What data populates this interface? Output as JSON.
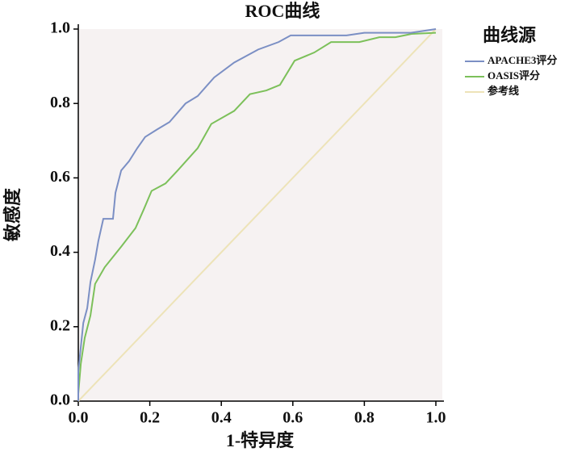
{
  "chart_data": {
    "type": "line",
    "title": "ROC曲线",
    "x_label": "1-特异度",
    "y_label": "敏感度",
    "legend_title": "曲线源",
    "legend_position": "right",
    "xlim": [
      0,
      1
    ],
    "ylim": [
      0,
      1
    ],
    "xticks": [
      {
        "value": 0,
        "label": "0.0"
      },
      {
        "value": 0.2,
        "label": "0.2"
      },
      {
        "value": 0.4,
        "label": "0.4"
      },
      {
        "value": 0.6,
        "label": "0.6"
      },
      {
        "value": 0.8,
        "label": "0.8"
      },
      {
        "value": 1,
        "label": "1.0"
      }
    ],
    "yticks": [
      {
        "value": 0,
        "label": "0.0"
      },
      {
        "value": 0.2,
        "label": "0.2"
      },
      {
        "value": 0.4,
        "label": "0.4"
      },
      {
        "value": 0.6,
        "label": "0.6"
      },
      {
        "value": 0.8,
        "label": "0.8"
      },
      {
        "value": 1,
        "label": "1.0"
      }
    ],
    "grid": false,
    "series": [
      {
        "name": "APACHE3评分",
        "color": "#7b8fc4",
        "x": [
          0,
          0,
          0.007,
          0.014,
          0.025,
          0.034,
          0.047,
          0.056,
          0.07,
          0.097,
          0.104,
          0.12,
          0.142,
          0.165,
          0.187,
          0.22,
          0.255,
          0.3,
          0.334,
          0.38,
          0.436,
          0.503,
          0.56,
          0.594,
          0.75,
          0.8,
          0.93,
          1
        ],
        "values": [
          0,
          0.08,
          0.145,
          0.21,
          0.25,
          0.32,
          0.38,
          0.43,
          0.49,
          0.49,
          0.56,
          0.62,
          0.645,
          0.68,
          0.71,
          0.73,
          0.75,
          0.8,
          0.82,
          0.87,
          0.91,
          0.945,
          0.965,
          0.983,
          0.983,
          0.99,
          0.99,
          1
        ]
      },
      {
        "name": "OASIS评分",
        "color": "#7cc05a",
        "x": [
          0,
          0.007,
          0.018,
          0.034,
          0.047,
          0.074,
          0.12,
          0.16,
          0.183,
          0.205,
          0.244,
          0.278,
          0.334,
          0.372,
          0.436,
          0.48,
          0.526,
          0.564,
          0.605,
          0.66,
          0.707,
          0.786,
          0.842,
          0.887,
          0.932,
          1
        ],
        "values": [
          0.02,
          0.1,
          0.17,
          0.23,
          0.315,
          0.36,
          0.415,
          0.465,
          0.515,
          0.565,
          0.585,
          0.62,
          0.68,
          0.745,
          0.78,
          0.825,
          0.835,
          0.85,
          0.915,
          0.937,
          0.965,
          0.965,
          0.978,
          0.978,
          0.987,
          0.99
        ]
      },
      {
        "name": "参考线",
        "color": "#ede3b8",
        "x": [
          0,
          1
        ],
        "values": [
          0,
          1
        ]
      }
    ]
  }
}
